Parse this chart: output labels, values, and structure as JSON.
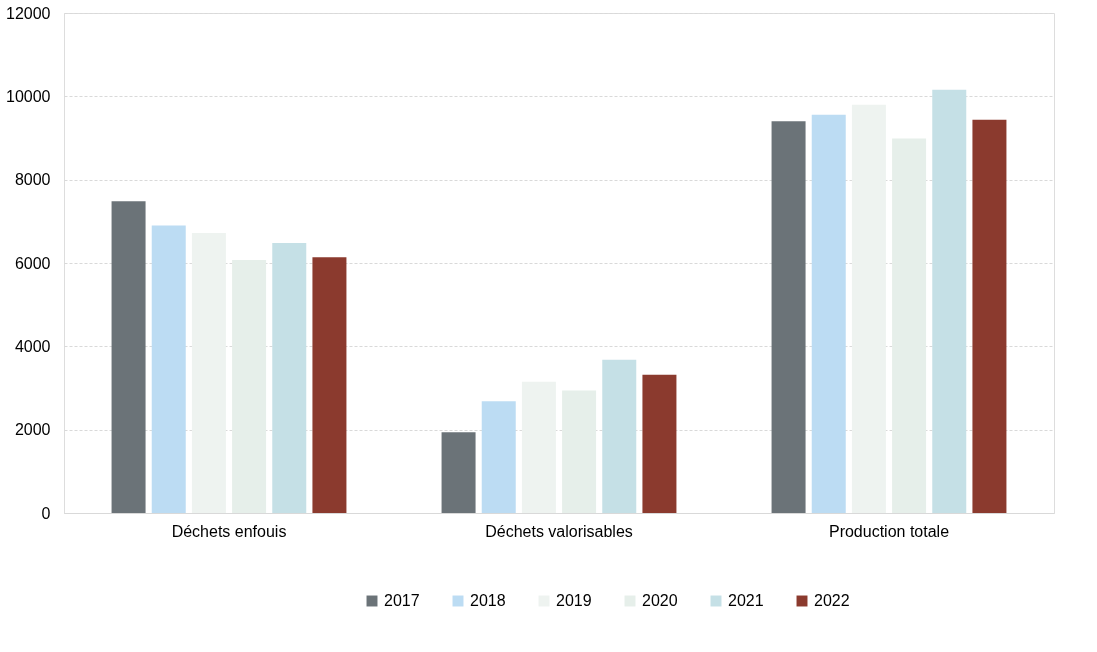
{
  "chart_data": {
    "type": "bar",
    "categories": [
      "Déchets enfouis",
      "Déchets valorisables",
      "Production totale"
    ],
    "series": [
      {
        "name": "2017",
        "color": "#6b7378",
        "values": [
          7480,
          1940,
          9400
        ]
      },
      {
        "name": "2018",
        "color": "#bcdcf3",
        "values": [
          6900,
          2680,
          9560
        ]
      },
      {
        "name": "2019",
        "color": "#eef3f0",
        "values": [
          6720,
          3150,
          9800
        ]
      },
      {
        "name": "2020",
        "color": "#e6efea",
        "values": [
          6070,
          2940,
          8990
        ]
      },
      {
        "name": "2021",
        "color": "#c5e0e6",
        "values": [
          6480,
          3680,
          10160
        ]
      },
      {
        "name": "2022",
        "color": "#8b3a2e",
        "values": [
          6140,
          3320,
          9440
        ]
      }
    ],
    "ylim": [
      0,
      12000
    ],
    "yticks": [
      0,
      2000,
      4000,
      6000,
      8000,
      10000,
      12000
    ],
    "grid": "y",
    "legend": "bottom"
  }
}
